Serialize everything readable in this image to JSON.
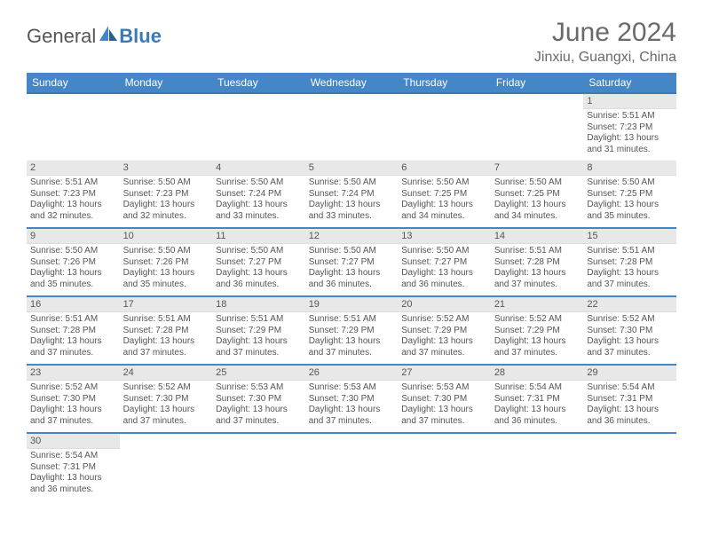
{
  "logo": {
    "part1": "General",
    "part2": "Blue"
  },
  "title": "June 2024",
  "location": "Jinxiu, Guangxi, China",
  "colors": {
    "header_bg": "#4486c6",
    "header_border": "#3b7ab8",
    "daynum_bg": "#e8e8e8",
    "text": "#555555",
    "location_text": "#6a6a6a"
  },
  "weekdays": [
    "Sunday",
    "Monday",
    "Tuesday",
    "Wednesday",
    "Thursday",
    "Friday",
    "Saturday"
  ],
  "days": [
    {
      "n": 1,
      "sr": "5:51 AM",
      "ss": "7:23 PM",
      "dl": "13 hours and 31 minutes."
    },
    {
      "n": 2,
      "sr": "5:51 AM",
      "ss": "7:23 PM",
      "dl": "13 hours and 32 minutes."
    },
    {
      "n": 3,
      "sr": "5:50 AM",
      "ss": "7:23 PM",
      "dl": "13 hours and 32 minutes."
    },
    {
      "n": 4,
      "sr": "5:50 AM",
      "ss": "7:24 PM",
      "dl": "13 hours and 33 minutes."
    },
    {
      "n": 5,
      "sr": "5:50 AM",
      "ss": "7:24 PM",
      "dl": "13 hours and 33 minutes."
    },
    {
      "n": 6,
      "sr": "5:50 AM",
      "ss": "7:25 PM",
      "dl": "13 hours and 34 minutes."
    },
    {
      "n": 7,
      "sr": "5:50 AM",
      "ss": "7:25 PM",
      "dl": "13 hours and 34 minutes."
    },
    {
      "n": 8,
      "sr": "5:50 AM",
      "ss": "7:25 PM",
      "dl": "13 hours and 35 minutes."
    },
    {
      "n": 9,
      "sr": "5:50 AM",
      "ss": "7:26 PM",
      "dl": "13 hours and 35 minutes."
    },
    {
      "n": 10,
      "sr": "5:50 AM",
      "ss": "7:26 PM",
      "dl": "13 hours and 35 minutes."
    },
    {
      "n": 11,
      "sr": "5:50 AM",
      "ss": "7:27 PM",
      "dl": "13 hours and 36 minutes."
    },
    {
      "n": 12,
      "sr": "5:50 AM",
      "ss": "7:27 PM",
      "dl": "13 hours and 36 minutes."
    },
    {
      "n": 13,
      "sr": "5:50 AM",
      "ss": "7:27 PM",
      "dl": "13 hours and 36 minutes."
    },
    {
      "n": 14,
      "sr": "5:51 AM",
      "ss": "7:28 PM",
      "dl": "13 hours and 37 minutes."
    },
    {
      "n": 15,
      "sr": "5:51 AM",
      "ss": "7:28 PM",
      "dl": "13 hours and 37 minutes."
    },
    {
      "n": 16,
      "sr": "5:51 AM",
      "ss": "7:28 PM",
      "dl": "13 hours and 37 minutes."
    },
    {
      "n": 17,
      "sr": "5:51 AM",
      "ss": "7:28 PM",
      "dl": "13 hours and 37 minutes."
    },
    {
      "n": 18,
      "sr": "5:51 AM",
      "ss": "7:29 PM",
      "dl": "13 hours and 37 minutes."
    },
    {
      "n": 19,
      "sr": "5:51 AM",
      "ss": "7:29 PM",
      "dl": "13 hours and 37 minutes."
    },
    {
      "n": 20,
      "sr": "5:52 AM",
      "ss": "7:29 PM",
      "dl": "13 hours and 37 minutes."
    },
    {
      "n": 21,
      "sr": "5:52 AM",
      "ss": "7:29 PM",
      "dl": "13 hours and 37 minutes."
    },
    {
      "n": 22,
      "sr": "5:52 AM",
      "ss": "7:30 PM",
      "dl": "13 hours and 37 minutes."
    },
    {
      "n": 23,
      "sr": "5:52 AM",
      "ss": "7:30 PM",
      "dl": "13 hours and 37 minutes."
    },
    {
      "n": 24,
      "sr": "5:52 AM",
      "ss": "7:30 PM",
      "dl": "13 hours and 37 minutes."
    },
    {
      "n": 25,
      "sr": "5:53 AM",
      "ss": "7:30 PM",
      "dl": "13 hours and 37 minutes."
    },
    {
      "n": 26,
      "sr": "5:53 AM",
      "ss": "7:30 PM",
      "dl": "13 hours and 37 minutes."
    },
    {
      "n": 27,
      "sr": "5:53 AM",
      "ss": "7:30 PM",
      "dl": "13 hours and 37 minutes."
    },
    {
      "n": 28,
      "sr": "5:54 AM",
      "ss": "7:31 PM",
      "dl": "13 hours and 36 minutes."
    },
    {
      "n": 29,
      "sr": "5:54 AM",
      "ss": "7:31 PM",
      "dl": "13 hours and 36 minutes."
    },
    {
      "n": 30,
      "sr": "5:54 AM",
      "ss": "7:31 PM",
      "dl": "13 hours and 36 minutes."
    }
  ],
  "labels": {
    "sunrise": "Sunrise:",
    "sunset": "Sunset:",
    "daylight": "Daylight:"
  },
  "first_weekday_index": 6
}
